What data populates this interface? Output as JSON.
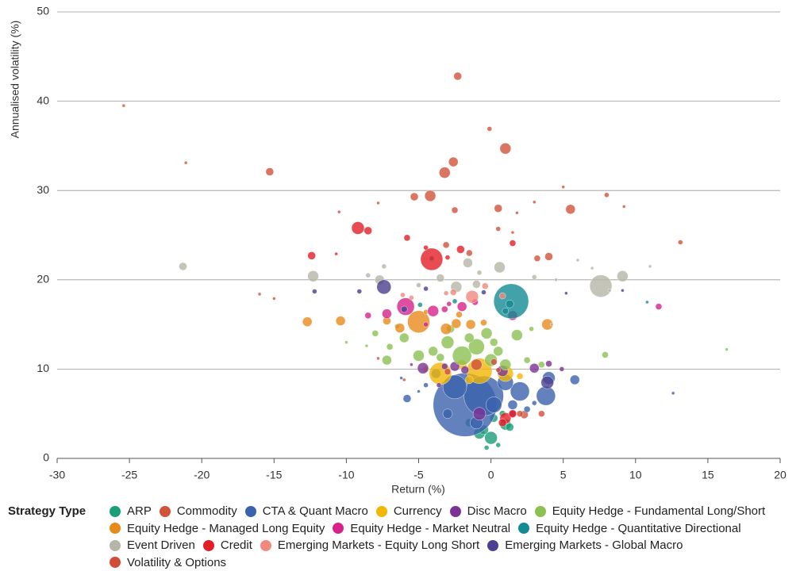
{
  "chart_data": {
    "type": "scatter",
    "x_label": "Return (%)",
    "y_label": "Annualised volatility (%)",
    "legend_title": "Strategy Type",
    "xlim": [
      -30,
      20
    ],
    "xticks": [
      -30,
      -25,
      -20,
      -15,
      -10,
      -5,
      0,
      5,
      10,
      15,
      20
    ],
    "ylim": [
      0,
      50
    ],
    "yticks": [
      0,
      10,
      20,
      30,
      40,
      50
    ],
    "grid": true,
    "series": [
      {
        "name": "ARP",
        "color": "#1a9e77",
        "x": [
          0,
          -0.8,
          1,
          0.2,
          -1.5,
          0.5,
          -0.3,
          1.3,
          -0.5,
          0.8
        ],
        "values": [
          2.3,
          2.8,
          3.8,
          4.5,
          4,
          1.5,
          1.2,
          3.5,
          3.2,
          5
        ],
        "sizes": [
          8,
          7,
          7,
          5,
          5,
          3,
          3,
          5,
          6,
          4
        ]
      },
      {
        "name": "Commodity",
        "color": "#d0533a",
        "x": [
          -25.4,
          -21.1,
          -15.3,
          -2.3,
          -0.1,
          1,
          -2.6,
          -3.2,
          -4.2,
          -5.3,
          -2.5,
          0.5,
          5.5,
          8,
          9.2,
          1.8,
          13.1,
          4,
          -1.5,
          -3.1,
          0.5,
          -7.8,
          -10.5,
          -16,
          -15,
          3,
          5,
          1.5,
          3.2,
          2.3
        ],
        "values": [
          39.5,
          33.1,
          32.1,
          42.8,
          36.9,
          34.7,
          33.2,
          32,
          29.4,
          29.3,
          27.8,
          28,
          27.9,
          29.5,
          28.2,
          27.5,
          24.2,
          22.6,
          23,
          23.9,
          25.7,
          28.6,
          27.6,
          18.4,
          17.9,
          28.7,
          30.4,
          25.3,
          22.4,
          4.9
        ],
        "sizes": [
          2,
          2,
          5,
          5,
          3,
          7,
          6,
          7,
          7,
          5,
          4,
          5,
          6,
          3,
          2,
          2,
          3,
          5,
          4,
          4,
          3,
          2,
          2,
          2,
          2,
          2,
          2,
          2,
          4,
          5
        ]
      },
      {
        "name": "CTA & Quant Macro",
        "color": "#3b62ad",
        "x": [
          -1.8,
          -0.5,
          -2.5,
          2,
          3.8,
          1,
          4,
          -3.8,
          5.8,
          -5.8,
          12.6,
          0.2,
          -1,
          2.5,
          -4.5,
          -5,
          -6.2,
          3,
          1.5,
          -3
        ],
        "values": [
          6,
          7,
          8,
          7.5,
          7,
          8.5,
          9,
          9.5,
          8.8,
          6.7,
          7.3,
          6,
          4,
          5.5,
          8.2,
          7.5,
          9,
          6.2,
          6,
          5
        ],
        "sizes": [
          40,
          25,
          15,
          12,
          12,
          10,
          8,
          6,
          6,
          5,
          2,
          10,
          8,
          4,
          3,
          2,
          2,
          3,
          6,
          6
        ]
      },
      {
        "name": "Currency",
        "color": "#f2b705",
        "x": [
          -3.5,
          -0.8,
          1,
          -4.5,
          -2,
          2,
          -1.5
        ],
        "values": [
          9.5,
          9.8,
          9.5,
          10,
          10.5,
          9.2,
          8.8
        ],
        "sizes": [
          14,
          16,
          10,
          4,
          6,
          4,
          5
        ]
      },
      {
        "name": "Disc Macro",
        "color": "#7b3294",
        "x": [
          -4.7,
          0.8,
          3,
          -0.8,
          -2.5,
          4,
          4.9,
          -3.2,
          -5.5,
          1.5,
          -3.6,
          -1.8
        ],
        "values": [
          10.1,
          9.8,
          10.1,
          5,
          10.3,
          10.6,
          10,
          10.3,
          10.5,
          5,
          8.2,
          9.9
        ],
        "sizes": [
          7,
          7,
          6,
          8,
          6,
          4,
          3,
          4,
          2,
          4,
          3,
          5
        ]
      },
      {
        "name": "Equity Hedge - Fundamental Long/Short",
        "color": "#8cc152",
        "x": [
          -2,
          -1,
          -3,
          0,
          1,
          -4,
          -5,
          -6,
          -7.2,
          1.8,
          0.5,
          -1.5,
          -2.8,
          2.5,
          3.5,
          7.9,
          16.3,
          -8.6,
          -10,
          -7,
          -0.3,
          -3.5,
          2.8,
          -8,
          -6.5,
          0.2
        ],
        "values": [
          11.5,
          12.5,
          13,
          11,
          10.5,
          12,
          11.5,
          13.5,
          11,
          13.8,
          12,
          13.5,
          14.5,
          11,
          10.5,
          11.6,
          12.2,
          12.6,
          13,
          12.5,
          14,
          11.3,
          14.5,
          14,
          14.8,
          13
        ],
        "sizes": [
          12,
          10,
          8,
          8,
          7,
          6,
          7,
          6,
          6,
          7,
          6,
          6,
          5,
          4,
          4,
          4,
          2,
          2,
          2,
          4,
          7,
          5,
          3,
          4,
          3,
          5
        ]
      },
      {
        "name": "Equity Hedge - Managed Long Equity",
        "color": "#e8891c",
        "x": [
          -5,
          -12.7,
          -10.4,
          3.9,
          -6.3,
          -7.2,
          -2.4,
          -1.4,
          -3.1,
          -0.5,
          -2.2,
          -4.5
        ],
        "values": [
          15.3,
          15.3,
          15.4,
          15,
          14.6,
          15.4,
          15.1,
          15,
          14.5,
          15.2,
          16.1,
          16.4
        ],
        "sizes": [
          14,
          6,
          6,
          7,
          6,
          5,
          6,
          6,
          7,
          4,
          4,
          3
        ]
      },
      {
        "name": "Equity Hedge - Market Neutral",
        "color": "#d6228a",
        "x": [
          -5.9,
          -2,
          -4,
          -7.2,
          -1.1,
          -3.2,
          11.6,
          1.5,
          -8.5,
          -2.9,
          -4.5
        ],
        "values": [
          17,
          17,
          16.5,
          16.2,
          17.5,
          16.7,
          17,
          16,
          16,
          17.3,
          15
        ],
        "sizes": [
          11,
          6,
          7,
          6,
          4,
          4,
          4,
          6,
          4,
          3,
          3
        ]
      },
      {
        "name": "Equity Hedge - Quantitative Directional",
        "color": "#138a94",
        "x": [
          1.4,
          1.3,
          -2.5,
          -4.1,
          10.8,
          -4.9,
          1
        ],
        "values": [
          17.6,
          17.3,
          17.6,
          22.4,
          17.5,
          17.2,
          16.5
        ],
        "sizes": [
          22,
          5,
          3,
          3,
          2,
          3,
          4
        ]
      },
      {
        "name": "Event Driven",
        "color": "#b5b5a8",
        "x": [
          -21.3,
          -12.3,
          -7.7,
          0.6,
          -1.6,
          -3.5,
          -2.4,
          7.6,
          9.1,
          -1,
          -7.4,
          -0.8,
          4.5,
          11,
          7,
          6,
          -5,
          3,
          -8.5,
          8.2,
          4.2
        ],
        "values": [
          21.5,
          20.4,
          20,
          21.4,
          21.9,
          20.2,
          19.2,
          19.3,
          20.4,
          19.5,
          21.5,
          20.8,
          20,
          21.5,
          21.3,
          22.2,
          19.4,
          20.3,
          20.5,
          18.8,
          15
        ],
        "sizes": [
          5,
          7,
          6,
          7,
          6,
          5,
          7,
          14,
          7,
          5,
          3,
          3,
          2,
          2,
          2,
          2,
          3,
          3,
          3,
          2,
          2
        ]
      },
      {
        "name": "Credit",
        "color": "#e21e26",
        "x": [
          -4.1,
          -9.2,
          -12.4,
          -8.5,
          -5.8,
          -10.7,
          1.5,
          -2.1,
          -4.5,
          1,
          1.5,
          -3,
          0.8
        ],
        "values": [
          22.3,
          25.8,
          22.7,
          25.5,
          24.7,
          22.9,
          24.1,
          23.4,
          23.6,
          4.5,
          5,
          22.5,
          4
        ],
        "sizes": [
          14,
          8,
          5,
          5,
          4,
          2,
          4,
          5,
          3,
          7,
          5,
          3,
          5
        ]
      },
      {
        "name": "Emerging Markets - Equity Long Short",
        "color": "#f08a7e",
        "x": [
          -1.3,
          -2.6,
          -0.4,
          0.8,
          -3.1,
          -5.5,
          -6.1
        ],
        "values": [
          18.1,
          18.6,
          19.3,
          18.2,
          18.5,
          18,
          18.3
        ],
        "sizes": [
          8,
          4,
          4,
          4,
          3,
          3,
          3
        ]
      },
      {
        "name": "Emerging Markets - Global Macro",
        "color": "#4b3f8f",
        "x": [
          -7.4,
          3.9,
          -12.2,
          -0.5,
          -9.1,
          9.1,
          5.2,
          -6,
          -4.5
        ],
        "values": [
          19.2,
          8.5,
          18.7,
          18.6,
          18.7,
          18.8,
          18.5,
          16.7,
          19
        ],
        "sizes": [
          9,
          8,
          3,
          3,
          3,
          2,
          2,
          4,
          3
        ]
      },
      {
        "name": "Volatility & Options",
        "color": "#d14d3a",
        "x": [
          -1,
          0.2,
          3.5,
          2,
          -3,
          -6,
          -7.8,
          0.5
        ],
        "values": [
          10.5,
          10.8,
          5,
          5,
          9.7,
          8.8,
          11.2,
          9.9
        ],
        "sizes": [
          7,
          4,
          4,
          4,
          4,
          2,
          2,
          3
        ]
      }
    ]
  }
}
